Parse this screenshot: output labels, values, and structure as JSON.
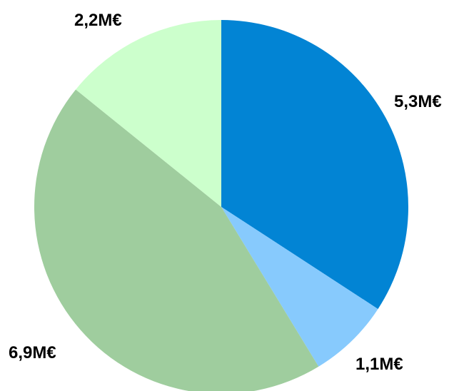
{
  "chart_data": {
    "type": "pie",
    "categories": [
      "",
      "",
      "",
      ""
    ],
    "values": [
      5.3,
      1.1,
      6.9,
      2.2
    ],
    "unit": "M€",
    "data_labels": [
      "5,3M€",
      "1,1M€",
      "6,9M€",
      "2,2M€"
    ],
    "colors": [
      "#0284D4",
      "#87CAFD",
      "#9FCD9E",
      "#CCFFCC"
    ],
    "start_angle_deg": 0,
    "direction": "clockwise",
    "legend": "none",
    "title": ""
  }
}
